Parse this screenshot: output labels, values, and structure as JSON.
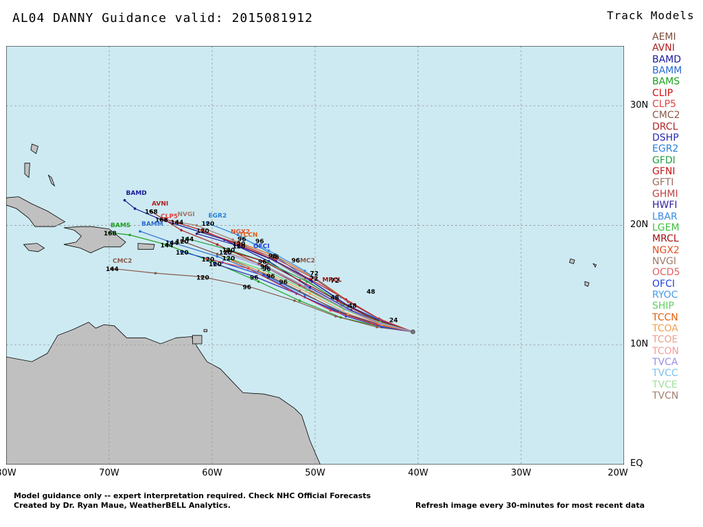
{
  "header": {
    "title": "AL04 DANNY Guidance valid: 2015081912"
  },
  "legend": {
    "title": "Track Models",
    "items": [
      {
        "label": "AEMI",
        "color": "#7a4a3a"
      },
      {
        "label": "AVNI",
        "color": "#b02020"
      },
      {
        "label": "BAMD",
        "color": "#1a1a9a"
      },
      {
        "label": "BAMM",
        "color": "#2a6ad0"
      },
      {
        "label": "BAMS",
        "color": "#20a020"
      },
      {
        "label": "CLIP",
        "color": "#d01010"
      },
      {
        "label": "CLP5",
        "color": "#e04040"
      },
      {
        "label": "CMC2",
        "color": "#8a5a4a"
      },
      {
        "label": "DRCL",
        "color": "#b02828"
      },
      {
        "label": "DSHP",
        "color": "#2a2ab0"
      },
      {
        "label": "EGR2",
        "color": "#2a80d8"
      },
      {
        "label": "GFDI",
        "color": "#20a040"
      },
      {
        "label": "GFNI",
        "color": "#c01818"
      },
      {
        "label": "GFTI",
        "color": "#9a6a5a"
      },
      {
        "label": "GHMI",
        "color": "#c04040"
      },
      {
        "label": "HWFI",
        "color": "#3020a0"
      },
      {
        "label": "LBAR",
        "color": "#3a8ae0"
      },
      {
        "label": "LGEM",
        "color": "#40c040"
      },
      {
        "label": "MRCL",
        "color": "#a01010"
      },
      {
        "label": "NGX2",
        "color": "#e05020"
      },
      {
        "label": "NVGI",
        "color": "#a07a6a"
      },
      {
        "label": "OCD5",
        "color": "#e06060"
      },
      {
        "label": "OFCI",
        "color": "#2040e0"
      },
      {
        "label": "RYOC",
        "color": "#4a9ae8"
      },
      {
        "label": "SHIP",
        "color": "#60d060"
      },
      {
        "label": "TCCN",
        "color": "#e06010"
      },
      {
        "label": "TCOA",
        "color": "#f0a050"
      },
      {
        "label": "TCOE",
        "color": "#e8a090"
      },
      {
        "label": "TCON",
        "color": "#f0a0a0"
      },
      {
        "label": "TVCA",
        "color": "#9a90e0"
      },
      {
        "label": "TVCC",
        "color": "#80c0f0"
      },
      {
        "label": "TVCE",
        "color": "#a0e0a0"
      },
      {
        "label": "TVCN",
        "color": "#a08070"
      }
    ]
  },
  "map": {
    "lon_range": [
      -80,
      -20
    ],
    "lat_range": [
      0,
      35
    ],
    "ocean_color": "#cdeaf2",
    "land_color": "#c0c0c0",
    "lat_ticks": [
      "30N",
      "20N",
      "10N",
      "EQ"
    ],
    "lon_ticks": [
      "80W",
      "70W",
      "60W",
      "50W",
      "40W",
      "30W",
      "20W"
    ],
    "start_point": {
      "lon": -40.5,
      "lat": 11.1
    },
    "tracks": [
      {
        "model": "BAMD",
        "color": "#1a1a9a",
        "label": "BAMD",
        "points": [
          [
            -40.5,
            11.1
          ],
          [
            -43.5,
            11.8
          ],
          [
            -46.5,
            12.9
          ],
          [
            -50.5,
            14.8
          ],
          [
            -54.5,
            17.0
          ],
          [
            -58.8,
            18.8
          ],
          [
            -65.0,
            20.5
          ],
          [
            -67.5,
            21.4
          ],
          [
            -68.5,
            22.1
          ]
        ],
        "tau": [
          {
            "text": "168",
            "at": 6
          }
        ]
      },
      {
        "model": "AVNI",
        "color": "#b02020",
        "label": "AVNI",
        "points": [
          [
            -40.5,
            11.1
          ],
          [
            -44.0,
            11.9
          ],
          [
            -47.5,
            13.2
          ],
          [
            -51.5,
            15.0
          ],
          [
            -55.5,
            16.8
          ],
          [
            -59.5,
            18.4
          ],
          [
            -63.0,
            19.6
          ],
          [
            -66.0,
            21.2
          ]
        ],
        "tau": [
          {
            "text": "168",
            "at": 7
          }
        ]
      },
      {
        "model": "BAMM",
        "color": "#2a6ad0",
        "label": "BAMM",
        "points": [
          [
            -40.5,
            11.1
          ],
          [
            -43.8,
            11.7
          ],
          [
            -47.0,
            12.6
          ],
          [
            -51.0,
            14.2
          ],
          [
            -55.0,
            15.9
          ],
          [
            -59.5,
            17.4
          ],
          [
            -64.0,
            18.6
          ],
          [
            -67.0,
            19.5
          ]
        ],
        "tau": [
          {
            "text": "144",
            "at": 6
          }
        ]
      },
      {
        "model": "BAMS",
        "color": "#20a020",
        "label": "BAMS",
        "points": [
          [
            -40.5,
            11.1
          ],
          [
            -44.0,
            11.6
          ],
          [
            -47.5,
            12.3
          ],
          [
            -51.5,
            13.7
          ],
          [
            -55.5,
            15.3
          ],
          [
            -59.8,
            16.9
          ],
          [
            -64.5,
            18.4
          ],
          [
            -68.0,
            19.2
          ],
          [
            -70.0,
            19.4
          ]
        ],
        "tau": [
          {
            "text": "144",
            "at": 6
          },
          {
            "text": "168",
            "at": 8
          }
        ]
      },
      {
        "model": "CMC2",
        "color": "#8a5a4a",
        "label": "CMC2",
        "points": [
          [
            -40.5,
            11.1
          ],
          [
            -44.0,
            11.5
          ],
          [
            -48.0,
            12.4
          ],
          [
            -52.0,
            13.7
          ],
          [
            -56.5,
            14.9
          ],
          [
            -61.0,
            15.7
          ],
          [
            -65.5,
            16.0
          ],
          [
            -69.8,
            16.4
          ]
        ],
        "tau": [
          {
            "text": "96",
            "at": 4
          },
          {
            "text": "120",
            "at": 5
          },
          {
            "text": "144",
            "at": 7
          }
        ]
      },
      {
        "model": "EGR2",
        "color": "#2a80d8",
        "label": "EGR2",
        "points": [
          [
            -40.5,
            11.1
          ],
          [
            -43.5,
            11.9
          ],
          [
            -46.8,
            13.2
          ],
          [
            -50.5,
            15.4
          ],
          [
            -54.0,
            17.5
          ],
          [
            -57.5,
            19.2
          ],
          [
            -60.5,
            20.2
          ]
        ],
        "tau": [
          {
            "text": "96",
            "at": 4
          },
          {
            "text": "120",
            "at": 6
          }
        ]
      },
      {
        "model": "NVGI",
        "color": "#a07a6a",
        "label": "NVGI",
        "points": [
          [
            -40.5,
            11.1
          ],
          [
            -44.0,
            12.0
          ],
          [
            -47.5,
            13.5
          ],
          [
            -51.0,
            15.5
          ],
          [
            -54.5,
            17.3
          ],
          [
            -58.0,
            18.8
          ],
          [
            -61.5,
            20.0
          ],
          [
            -63.5,
            20.3
          ]
        ],
        "tau": [
          {
            "text": "144",
            "at": 7
          }
        ]
      },
      {
        "model": "TCCN",
        "color": "#e06010",
        "label": "TCCN",
        "points": [
          [
            -40.5,
            11.1
          ],
          [
            -43.5,
            12.0
          ],
          [
            -46.5,
            13.5
          ],
          [
            -50.0,
            15.6
          ],
          [
            -53.8,
            17.4
          ],
          [
            -57.5,
            18.6
          ]
        ],
        "tau": [
          {
            "text": "72",
            "at": 3
          },
          {
            "text": "96",
            "at": 4
          }
        ]
      },
      {
        "model": "OFCI",
        "color": "#2040e0",
        "label": "",
        "points": [
          [
            -40.5,
            11.1
          ],
          [
            -43.5,
            11.5
          ],
          [
            -47.0,
            12.4
          ],
          [
            -51.0,
            14.0
          ],
          [
            -55.0,
            15.8
          ],
          [
            -59.0,
            16.9
          ],
          [
            -63.0,
            17.8
          ]
        ],
        "tau": [
          {
            "text": "120",
            "at": 6
          }
        ]
      },
      {
        "model": "GFNI",
        "color": "#c01818",
        "label": "",
        "points": [
          [
            -40.5,
            11.1
          ],
          [
            -43.8,
            12.2
          ],
          [
            -47.0,
            13.8
          ],
          [
            -50.5,
            15.5
          ],
          [
            -54.0,
            17.1
          ],
          [
            -57.5,
            18.4
          ],
          [
            -61.0,
            19.6
          ],
          [
            -64.5,
            20.5
          ]
        ],
        "tau": [
          {
            "text": "120",
            "at": 6
          }
        ]
      },
      {
        "model": "DSHP",
        "color": "#2a2ab0",
        "label": "",
        "points": [
          [
            -40.5,
            11.1
          ],
          [
            -44.0,
            11.8
          ],
          [
            -47.8,
            12.8
          ],
          [
            -51.8,
            14.3
          ],
          [
            -55.8,
            15.7
          ],
          [
            -59.8,
            16.8
          ]
        ],
        "tau": [
          {
            "text": "96",
            "at": 4
          },
          {
            "text": "120",
            "at": 5
          }
        ]
      },
      {
        "model": "LBAR",
        "color": "#3a8ae0",
        "label": "",
        "points": [
          [
            -40.5,
            11.1
          ],
          [
            -44.0,
            12.2
          ],
          [
            -47.5,
            14.0
          ],
          [
            -51.0,
            16.2
          ],
          [
            -54.5,
            17.9
          ],
          [
            -57.0,
            18.9
          ]
        ],
        "tau": [
          {
            "text": "96",
            "at": 5
          }
        ]
      },
      {
        "model": "AEMI",
        "color": "#7a4a3a",
        "label": "",
        "points": [
          [
            -40.5,
            11.1
          ],
          [
            -44.0,
            11.7
          ],
          [
            -47.5,
            12.7
          ],
          [
            -51.5,
            14.5
          ],
          [
            -55.5,
            16.2
          ],
          [
            -59.5,
            17.6
          ],
          [
            -63.0,
            18.7
          ]
        ],
        "tau": [
          {
            "text": "120",
            "at": 6
          }
        ]
      },
      {
        "model": "GFDI",
        "color": "#20a040",
        "label": "",
        "points": [
          [
            -40.5,
            11.1
          ],
          [
            -43.8,
            12.0
          ],
          [
            -47.2,
            13.4
          ],
          [
            -50.8,
            15.3
          ],
          [
            -54.6,
            16.9
          ],
          [
            -58.5,
            18.0
          ],
          [
            -62.5,
            18.9
          ]
        ],
        "tau": [
          {
            "text": "120",
            "at": 5
          },
          {
            "text": "144",
            "at": 6
          }
        ]
      },
      {
        "model": "TVCN",
        "color": "#a08070",
        "label": "",
        "points": [
          [
            -40.5,
            11.1
          ],
          [
            -43.8,
            11.8
          ],
          [
            -47.2,
            13.0
          ],
          [
            -51.0,
            14.9
          ],
          [
            -54.8,
            16.6
          ],
          [
            -58.8,
            17.8
          ]
        ],
        "tau": [
          {
            "text": "96",
            "at": 4
          },
          {
            "text": "120",
            "at": 5
          }
        ]
      },
      {
        "model": "HWFI",
        "color": "#3020a0",
        "label": "",
        "points": [
          [
            -40.5,
            11.1
          ],
          [
            -43.6,
            12.0
          ],
          [
            -46.8,
            13.3
          ],
          [
            -50.3,
            15.3
          ],
          [
            -53.8,
            17.0
          ],
          [
            -57.5,
            18.3
          ],
          [
            -61.5,
            19.3
          ]
        ],
        "tau": [
          {
            "text": "120",
            "at": 5
          }
        ]
      },
      {
        "model": "GHMI",
        "color": "#c04040",
        "label": "",
        "points": [
          [
            -40.5,
            11.1
          ],
          [
            -43.6,
            12.1
          ],
          [
            -46.8,
            13.6
          ],
          [
            -50.2,
            15.6
          ],
          [
            -53.8,
            17.2
          ],
          [
            -57.5,
            18.5
          ],
          [
            -61.0,
            19.5
          ]
        ],
        "tau": [
          {
            "text": "120",
            "at": 5
          }
        ]
      },
      {
        "model": "CLP5",
        "color": "#e04040",
        "label": "",
        "points": [
          [
            -40.5,
            11.1
          ],
          [
            -44.5,
            11.8
          ],
          [
            -48.5,
            12.9
          ],
          [
            -52.5,
            14.6
          ],
          [
            -56.5,
            16.4
          ],
          [
            -60.5,
            17.2
          ]
        ],
        "tau": [
          {
            "text": "120",
            "at": 5
          }
        ]
      },
      {
        "model": "MRCL",
        "color": "#a01010",
        "label": "",
        "points": [
          [
            -40.5,
            11.1
          ],
          [
            -44.2,
            12.1
          ],
          [
            -47.8,
            13.7
          ],
          [
            -51.5,
            15.4
          ],
          [
            -55.0,
            17.0
          ],
          [
            -58.5,
            17.9
          ]
        ],
        "tau": [
          {
            "text": "96",
            "at": 4
          }
        ]
      },
      {
        "model": "TCOA",
        "color": "#f0a050",
        "label": "",
        "points": [
          [
            -40.5,
            11.1
          ],
          [
            -43.5,
            11.7
          ],
          [
            -46.8,
            12.6
          ],
          [
            -50.5,
            14.3
          ],
          [
            -54.2,
            15.8
          ],
          [
            -58.0,
            17.0
          ]
        ],
        "tau": [
          {
            "text": "96",
            "at": 4
          }
        ]
      },
      {
        "model": "SHIP",
        "color": "#60d060",
        "label": "",
        "points": [
          [
            -40.5,
            11.1
          ],
          [
            -43.7,
            11.9
          ],
          [
            -47.2,
            13.0
          ],
          [
            -50.8,
            14.6
          ],
          [
            -54.5,
            16.1
          ],
          [
            -58.5,
            17.3
          ]
        ],
        "tau": [
          {
            "text": "120",
            "at": 5
          }
        ]
      },
      {
        "model": "TVCA",
        "color": "#9a90e0",
        "label": "",
        "points": [
          [
            -40.5,
            11.1
          ],
          [
            -43.6,
            11.8
          ],
          [
            -47.0,
            13.0
          ],
          [
            -50.8,
            14.8
          ],
          [
            -54.6,
            16.4
          ],
          [
            -58.6,
            17.6
          ]
        ],
        "tau": [
          {
            "text": "96",
            "at": 4
          }
        ]
      }
    ],
    "track_labels_extra": [
      {
        "text": "NGX2",
        "lon": -58.2,
        "lat": 19.3,
        "color": "#e05020"
      },
      {
        "text": "OFCI",
        "lon": -56.0,
        "lat": 18.1,
        "color": "#2040e0"
      },
      {
        "text": "MRCL",
        "lon": -49.3,
        "lat": 15.3,
        "color": "#a01010"
      },
      {
        "text": "CMC2",
        "lon": -51.9,
        "lat": 16.9,
        "color": "#8a5a4a"
      },
      {
        "text": "CLP5",
        "lon": -65.0,
        "lat": 20.6,
        "color": "#e04040"
      }
    ],
    "tau_clusters": [
      {
        "text": "48",
        "lon": -45.0,
        "lat": 14.3
      },
      {
        "text": "72",
        "lon": -48.5,
        "lat": 15.2
      },
      {
        "text": "72",
        "lon": -50.5,
        "lat": 15.8
      },
      {
        "text": "96",
        "lon": -52.3,
        "lat": 16.9
      },
      {
        "text": "96",
        "lon": -55.8,
        "lat": 18.5
      },
      {
        "text": "24",
        "lon": -42.8,
        "lat": 11.9
      },
      {
        "text": "48",
        "lon": -46.8,
        "lat": 13.1
      },
      {
        "text": "48",
        "lon": -48.5,
        "lat": 13.8
      },
      {
        "text": "96",
        "lon": -53.5,
        "lat": 15.1
      }
    ]
  },
  "footer": {
    "note1": "Model guidance only -- expert interpretation required.  Check NHC Official Forecasts",
    "note2": "Created by Dr. Ryan Maue, WeatherBELL Analytics.",
    "note3": "Refresh image every 30-minutes for most recent data"
  }
}
